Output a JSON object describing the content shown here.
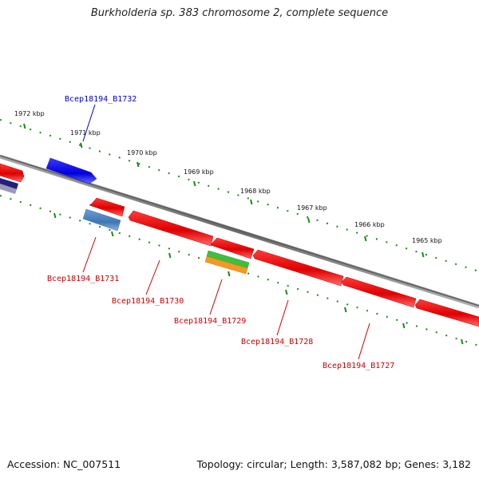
{
  "title": "Burkholderia sp. 383 chromosome 2, complete sequence",
  "footer": {
    "accession": "Accession: NC_007511",
    "topology": "Topology: circular; Length: 3,587,082 bp; Genes: 3,182"
  },
  "ruler_labels": [
    "1972 kbp",
    "1971 kbp",
    "1970 kbp",
    "1969 kbp",
    "1968 kbp",
    "1967 kbp",
    "1966 kbp",
    "1965 kbp"
  ],
  "gene_labels": [
    {
      "text": "Bcep18194_B1732",
      "color": "#0000cc"
    },
    {
      "text": "Bcep18194_B1731",
      "color": "#cc0000"
    },
    {
      "text": "Bcep18194_B1730",
      "color": "#cc0000"
    },
    {
      "text": "Bcep18194_B1729",
      "color": "#cc0000"
    },
    {
      "text": "Bcep18194_B1728",
      "color": "#cc0000"
    },
    {
      "text": "Bcep18194_B1727",
      "color": "#cc0000"
    }
  ],
  "colors": {
    "backbone": "#808080",
    "ruler_ticks": "#1a8a1a",
    "cds": "#ee1111",
    "forward_gene": "#1111ee",
    "blue_feature": "#4f86c0",
    "green_feature": "#33bb33",
    "orange_feature": "#f09020",
    "label_blue": "#0000cc",
    "label_red": "#cc0000"
  }
}
